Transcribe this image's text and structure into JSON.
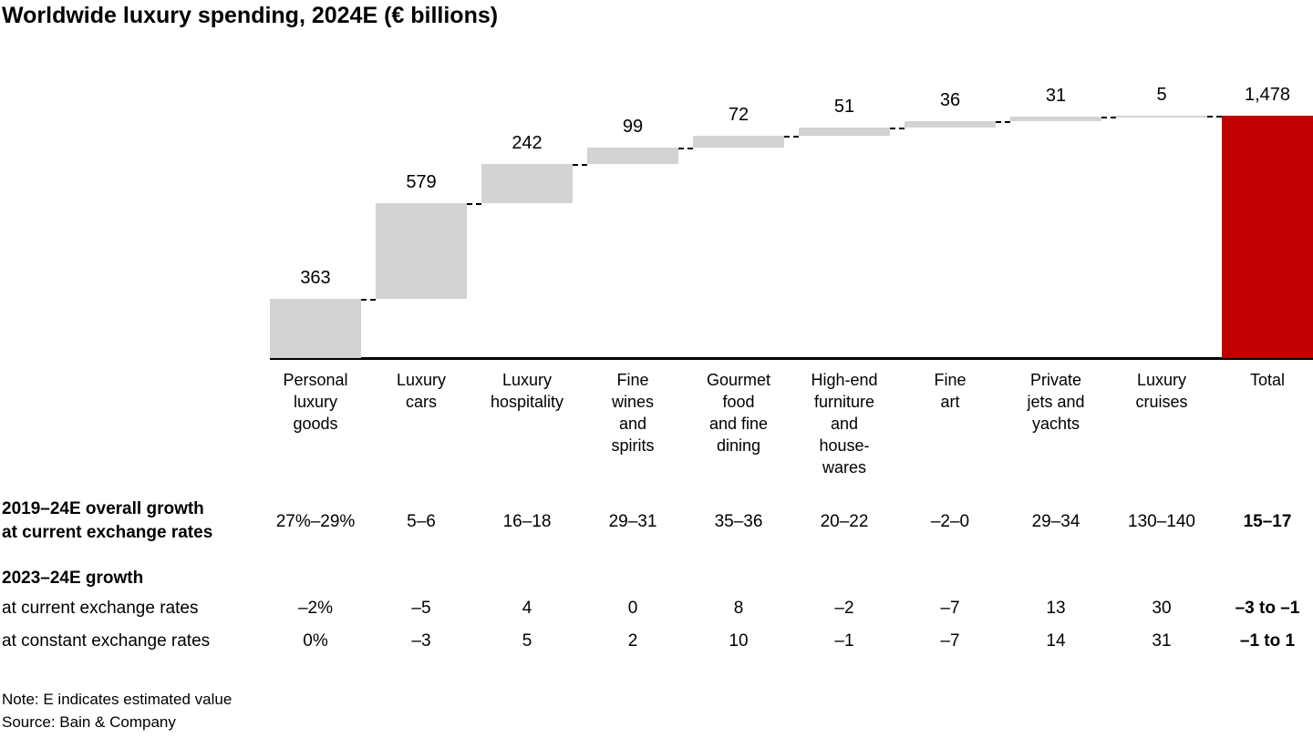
{
  "title": "Worldwide luxury spending, 2024E (€ billions)",
  "chart_data": {
    "type": "bar",
    "subtype": "waterfall",
    "title": "Worldwide luxury spending, 2024E (€ billions)",
    "unit": "€ billions",
    "categories": [
      "Personal\nluxury\ngoods",
      "Luxury\ncars",
      "Luxury\nhospitality",
      "Fine\nwines\nand\nspirits",
      "Gourmet\nfood\nand fine\ndining",
      "High-end\nfurniture\nand\nhouse-\nwares",
      "Fine\nart",
      "Private\njets and\nyachts",
      "Luxury\ncruises"
    ],
    "values": [
      363,
      579,
      242,
      99,
      72,
      51,
      36,
      31,
      5
    ],
    "value_labels": [
      "363",
      "579",
      "242",
      "99",
      "72",
      "51",
      "36",
      "31",
      "5"
    ],
    "total": {
      "label": "Total",
      "value": 1478,
      "value_label": "1,478"
    },
    "ylim": [
      0,
      1478
    ],
    "grid": false,
    "legend": false,
    "bar_color": "#d3d3d3",
    "total_color": "#c00000"
  },
  "growth_table": {
    "row_2019_24": {
      "label": "2019–24E overall growth\nat current exchange rates",
      "values": [
        "27%–29%",
        "5–6",
        "16–18",
        "29–31",
        "35–36",
        "20–22",
        "–2–0",
        "29–34",
        "130–140",
        "15–17"
      ]
    },
    "section_2023_24_heading": "2023–24E growth",
    "row_current": {
      "label": "at current exchange rates",
      "values": [
        "–2%",
        "–5",
        "4",
        "0",
        "8",
        "–2",
        "–7",
        "13",
        "30",
        "–3 to –1"
      ]
    },
    "row_constant": {
      "label": "at constant exchange rates",
      "values": [
        "0%",
        "–3",
        "5",
        "2",
        "10",
        "–1",
        "–7",
        "14",
        "31",
        "–1 to 1"
      ]
    }
  },
  "footer": {
    "note": "Note: E indicates estimated value",
    "source": "Source: Bain & Company"
  }
}
